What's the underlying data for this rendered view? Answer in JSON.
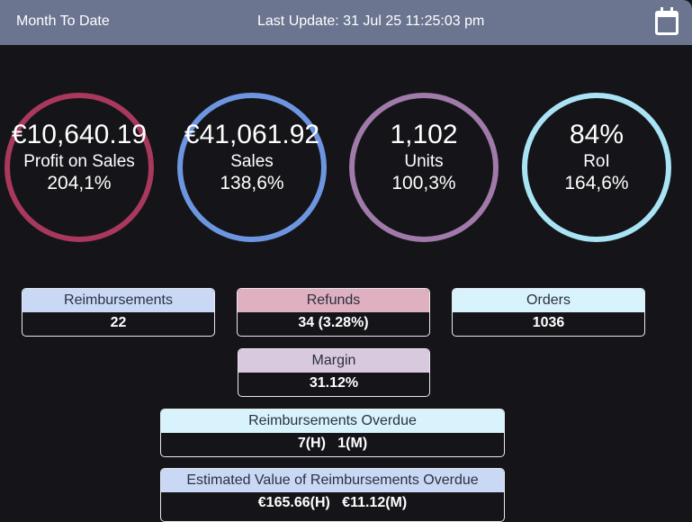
{
  "header": {
    "period": "Month To Date",
    "last_update": "Last Update: 31 Jul 25 11:25:03 pm"
  },
  "metrics": [
    {
      "value": "€10,640.19",
      "label": "Profit on Sales",
      "percent": "204,1%",
      "color": "#a8385c"
    },
    {
      "value": "€41,061.92",
      "label": "Sales",
      "percent": "138,6%",
      "color": "#6d95e0"
    },
    {
      "value": "1,102",
      "label": "Units",
      "percent": "100,3%",
      "color": "#a07aa8"
    },
    {
      "value": "84%",
      "label": "RoI",
      "percent": "164,6%",
      "color": "#a9e4f5"
    }
  ],
  "cards": {
    "reimbursements": {
      "title": "Reimbursements",
      "value": "22",
      "color": "#c9d9f5"
    },
    "refunds": {
      "title": "Refunds",
      "value": "34 (3.28%)",
      "color": "#dfb0bf"
    },
    "orders": {
      "title": "Orders",
      "value": "1036",
      "color": "#d8f3fb"
    },
    "margin": {
      "title": "Margin",
      "value": "31.12%",
      "color": "#d9c9df"
    },
    "overdue": {
      "title": "Reimbursements Overdue",
      "value": "7(H)   1(M)",
      "color": "#d8f3fb"
    },
    "overdue_value": {
      "title": "Estimated Value of Reimbursements Overdue",
      "value": "€165.66(H)   €11.12(M)",
      "color": "#c9d9f5"
    }
  }
}
